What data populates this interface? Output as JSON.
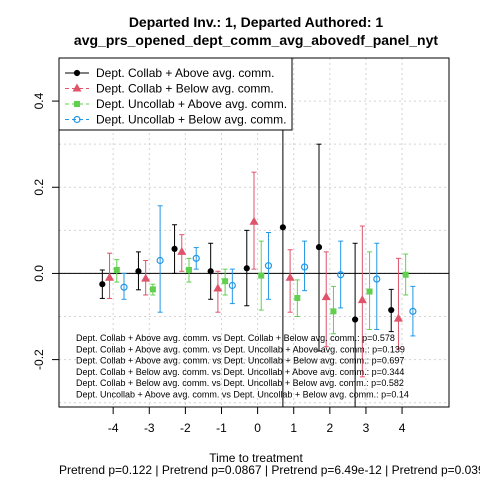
{
  "chart_data": {
    "type": "scatter",
    "title": "Departed Inv.: 1, Departed Authored: 1",
    "subtitle": "avg_prs_opened_dept_comm_avg_abovedf_panel_nyt",
    "xlabel": "Time to treatment",
    "ylabel": "",
    "xlim": [
      -5.5,
      5.3
    ],
    "ylim": [
      -0.31,
      0.5
    ],
    "x_ticks": [
      -4,
      -3,
      -2,
      -1,
      0,
      1,
      2,
      3,
      4
    ],
    "y_ticks": [
      -0.2,
      0.0,
      0.2,
      0.4
    ],
    "x_tick_labels": [
      "-4",
      "-3",
      "-2",
      "-1",
      "0",
      "1",
      "2",
      "3",
      "4"
    ],
    "y_tick_labels": [
      "-0.2",
      "0.0",
      "0.2",
      "0.4"
    ],
    "grid": true,
    "reference_line_y": 0,
    "legend_position": "top-left",
    "series": [
      {
        "name": "Dept. Collab + Above avg. comm.",
        "color": "#000000",
        "marker": "filled-circle",
        "x": [
          -4.3,
          -3.3,
          -2.3,
          -1.3,
          -0.3,
          0.7,
          1.7,
          2.7,
          3.7
        ],
        "y": [
          -0.025,
          0.005,
          0.057,
          0.005,
          0.012,
          0.107,
          0.061,
          -0.107,
          -0.085
        ],
        "lower": [
          -0.058,
          -0.038,
          0.0,
          -0.06,
          -0.075,
          -0.4,
          -0.18,
          -0.34,
          -0.135
        ],
        "upper": [
          0.008,
          0.05,
          0.113,
          0.07,
          0.1,
          0.5,
          0.3,
          0.07,
          -0.037
        ]
      },
      {
        "name": "Dept. Collab + Below avg. comm.",
        "color": "#df536b",
        "marker": "filled-triangle",
        "x": [
          -4.1,
          -3.1,
          -2.1,
          -1.1,
          -0.1,
          0.9,
          1.9,
          2.9,
          3.9
        ],
        "y": [
          -0.01,
          -0.012,
          0.05,
          -0.035,
          0.12,
          -0.01,
          -0.055,
          -0.062,
          -0.105
        ],
        "lower": [
          -0.058,
          -0.05,
          0.005,
          -0.09,
          0.01,
          -0.09,
          -0.17,
          -0.24,
          -0.175
        ],
        "upper": [
          0.047,
          0.03,
          0.09,
          0.005,
          0.235,
          0.055,
          0.05,
          0.11,
          0.035
        ]
      },
      {
        "name": "Dept. Uncollab + Above avg. comm.",
        "color": "#61d04f",
        "marker": "filled-square",
        "x": [
          -3.9,
          -2.9,
          -1.9,
          -0.9,
          0.1,
          1.1,
          2.1,
          3.1,
          4.1
        ],
        "y": [
          0.008,
          -0.037,
          0.008,
          -0.018,
          -0.005,
          -0.057,
          -0.088,
          -0.042,
          -0.003
        ],
        "lower": [
          -0.02,
          -0.05,
          -0.02,
          -0.05,
          -0.085,
          -0.1,
          -0.14,
          -0.13,
          -0.05
        ],
        "upper": [
          0.032,
          -0.025,
          0.035,
          0.01,
          0.075,
          -0.015,
          -0.03,
          0.05,
          0.045
        ]
      },
      {
        "name": "Dept. Uncollab + Below avg. comm.",
        "color": "#2297e6",
        "marker": "open-circle",
        "x": [
          -3.7,
          -2.7,
          -1.7,
          -0.7,
          0.3,
          1.3,
          2.3,
          3.3,
          4.3
        ],
        "y": [
          -0.032,
          0.03,
          0.035,
          -0.028,
          0.018,
          0.015,
          -0.003,
          -0.013,
          -0.088
        ],
        "lower": [
          -0.06,
          -0.09,
          0.01,
          -0.07,
          -0.06,
          -0.04,
          -0.08,
          -0.13,
          -0.145
        ],
        "upper": [
          0.0,
          0.157,
          0.06,
          0.01,
          0.095,
          0.075,
          0.075,
          0.07,
          -0.03
        ]
      }
    ],
    "annotations": [
      "Dept. Collab + Above avg. comm. vs Dept. Collab + Below avg. comm.: p=0.578",
      "Dept. Collab + Above avg. comm. vs Dept. Uncollab + Above avg. comm.: p=0.139",
      "Dept. Collab + Above avg. comm. vs Dept. Uncollab + Below avg. comm.: p=0.697",
      "Dept. Collab + Below avg. comm. vs Dept. Uncollab + Above avg. comm.: p=0.344",
      "Dept. Collab + Below avg. comm. vs Dept. Uncollab + Below avg. comm.: p=0.582",
      "Dept. Uncollab + Above avg. comm. vs Dept. Uncollab + Below avg. comm.: p=0.14"
    ],
    "footer": "Pretrend p=0.122 | Pretrend p=0.0867 | Pretrend p=6.49e-12 | Pretrend p=0.039"
  }
}
